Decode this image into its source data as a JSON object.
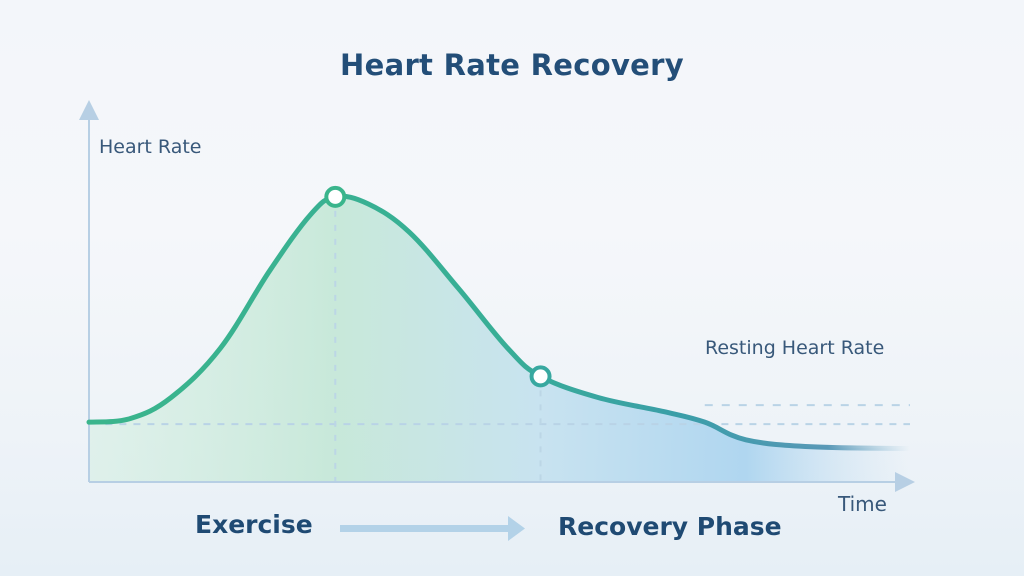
{
  "chart_data": {
    "type": "line",
    "title": "Heart Rate Recovery",
    "xlabel": "Time",
    "ylabel": "Heart Rate",
    "xlim": [
      0,
      100
    ],
    "ylim": [
      0,
      100
    ],
    "grid": false,
    "series": [
      {
        "name": "Heart Rate",
        "x": [
          0,
          5,
          10,
          16,
          22,
          27,
          30,
          34,
          39,
          45,
          51,
          55,
          62,
          70,
          75,
          80,
          88,
          100
        ],
        "y": [
          17,
          18,
          24,
          38,
          60,
          76,
          81,
          79,
          71,
          55,
          38,
          30,
          24,
          20,
          17,
          12,
          10,
          9.5
        ]
      }
    ],
    "markers": [
      {
        "name": "peak",
        "x": 30,
        "y": 81
      },
      {
        "name": "recovery-point",
        "x": 55,
        "y": 30
      }
    ],
    "reference_lines": [
      {
        "name": "baseline",
        "y": 17
      },
      {
        "name": "resting-heart-rate",
        "y": 21
      }
    ],
    "annotations": [
      "Resting Heart Rate"
    ],
    "phases": [
      "Exercise",
      "Recovery Phase"
    ],
    "colors": {
      "line_start": "#3ab58c",
      "line_end": "#3a8ca8",
      "fill_green": "#bfe6d3",
      "fill_blue": "#a9d2ee",
      "axis": "#b7cfe4",
      "text": "#234e78"
    }
  }
}
